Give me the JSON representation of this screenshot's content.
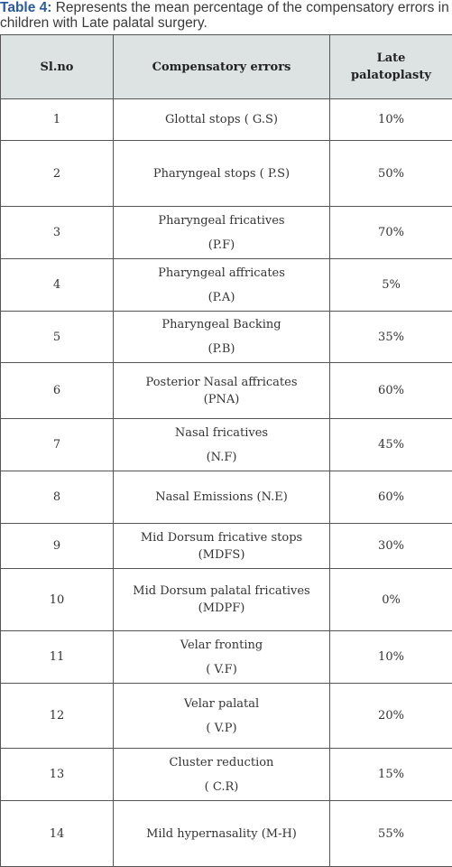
{
  "caption": {
    "label": "Table 4:",
    "text": "Represents the mean percentage of the compensatory errors in children with Late palatal surgery."
  },
  "table": {
    "header": {
      "sl": "Sl.no",
      "error": "Compensatory errors",
      "value": [
        "Late",
        "palatoplasty"
      ]
    },
    "rows": [
      {
        "sl": "1",
        "error": [
          "Glottal stops ( G.S)"
        ],
        "value": "10%"
      },
      {
        "sl": "2",
        "error": [
          "Pharyngeal stops ( P.S)"
        ],
        "value": "50%"
      },
      {
        "sl": "3",
        "error": [
          "Pharyngeal fricatives",
          "(P.F)"
        ],
        "value": "70%"
      },
      {
        "sl": "4",
        "error": [
          "Pharyngeal affricates",
          "(P.A)"
        ],
        "value": "5%"
      },
      {
        "sl": "5",
        "error": [
          "Pharyngeal Backing",
          "(P.B)"
        ],
        "value": "35%"
      },
      {
        "sl": "6",
        "error": [
          "Posterior Nasal affricates",
          "(PNA)"
        ],
        "value": "60%"
      },
      {
        "sl": "7",
        "error": [
          "Nasal fricatives",
          "(N.F)"
        ],
        "value": "45%"
      },
      {
        "sl": "8",
        "error": [
          "Nasal Emissions (N.E)"
        ],
        "value": "60%"
      },
      {
        "sl": "9",
        "error": [
          "Mid Dorsum fricative stops",
          "(MDFS)"
        ],
        "value": "30%"
      },
      {
        "sl": "10",
        "error": [
          "Mid Dorsum palatal fricatives",
          "(MDPF)"
        ],
        "value": "0%"
      },
      {
        "sl": "11",
        "error": [
          "Velar fronting",
          "( V.F)"
        ],
        "value": "10%"
      },
      {
        "sl": "12",
        "error": [
          "Velar palatal",
          "( V.P)"
        ],
        "value": "20%"
      },
      {
        "sl": "13",
        "error": [
          "Cluster reduction",
          "( C.R)"
        ],
        "value": "15%"
      },
      {
        "sl": "14",
        "error": [
          "Mild hypernasality  (M-H)"
        ],
        "value": "55%"
      }
    ]
  }
}
